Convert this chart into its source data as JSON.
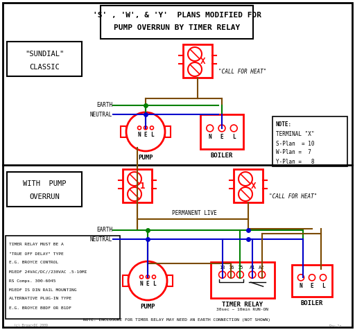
{
  "title_line1": "'S' , 'W', & 'Y'  PLANS MODIFIED FOR",
  "title_line2": "PUMP OVERRUN BY TIMER RELAY",
  "bg_color": "#ffffff",
  "border_color": "#000000",
  "wire_brown": "#7B4A00",
  "wire_green": "#008000",
  "wire_blue": "#0000CC",
  "wire_red": "#FF0000",
  "component_color": "#FF0000",
  "text_color": "#000000",
  "sundial_label_top": "\"SUNDIAL\"\nCLASSIC",
  "overrun_label": "WITH  PUMP\nOVERRUN"
}
